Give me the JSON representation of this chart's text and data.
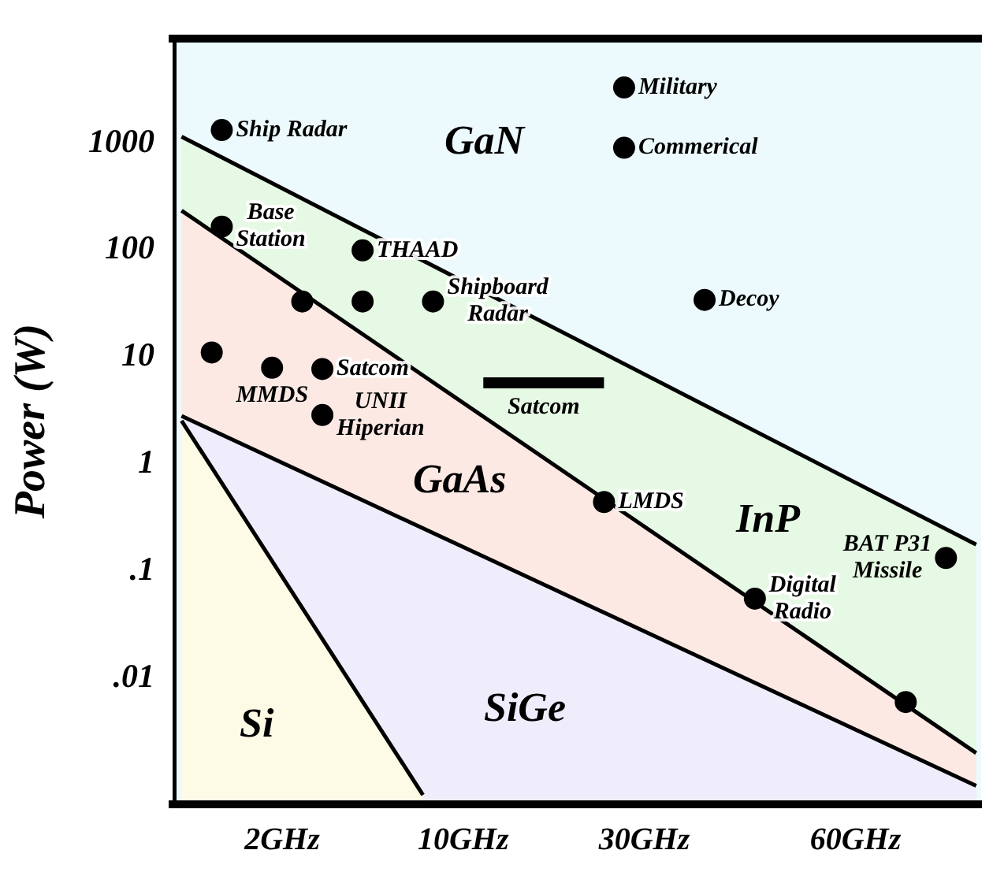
{
  "chart_data": {
    "type": "scatter",
    "ylabel": "Power (W)",
    "log": "y",
    "legend": false,
    "categories": [
      null,
      null,
      null,
      null,
      null,
      null,
      null,
      null,
      null,
      null,
      "2GHz",
      null,
      null,
      null,
      null,
      null,
      null,
      null,
      null,
      null,
      null,
      null,
      null,
      null,
      null,
      null,
      null,
      null,
      "10GHz",
      null,
      null,
      null,
      null,
      null,
      null,
      null,
      null,
      null,
      null,
      null,
      null,
      null,
      null,
      null,
      null,
      null,
      "30GHz",
      null,
      null,
      null,
      null,
      null,
      null,
      null,
      null,
      null,
      null,
      null,
      null,
      null,
      null,
      null,
      null,
      null,
      null,
      null,
      null,
      "60GHz",
      null,
      null,
      null,
      null,
      null,
      null,
      null,
      null,
      null,
      null,
      null,
      null
    ],
    "bands": [
      {
        "axis": "y",
        "from": 0.00065,
        "to": 8000,
        "label": "GaN",
        "color": "#edfafd"
      }
    ],
    "ylim": [
      0.00065,
      8000
    ],
    "yticks": [
      1000,
      100,
      10,
      1,
      {
        "value": 0.1,
        "label": ".1"
      },
      {
        "value": 0.01,
        "label": ".01"
      }
    ],
    "series": [
      {
        "type": "area",
        "name": "InP",
        "color": "#e6f9e4",
        "values": [
          1040,
          null,
          null,
          null,
          null,
          null,
          null,
          null,
          null,
          null,
          null,
          null,
          null,
          null,
          null,
          null,
          null,
          null,
          null,
          null,
          null,
          null,
          null,
          null,
          null,
          null,
          null,
          null,
          null,
          null,
          null,
          null,
          null,
          null,
          null,
          null,
          null,
          null,
          null,
          null,
          null,
          null,
          null,
          null,
          null,
          null,
          null,
          null,
          null,
          null,
          null,
          null,
          null,
          null,
          null,
          null,
          null,
          null,
          null,
          null,
          null,
          null,
          null,
          null,
          null,
          null,
          null,
          null,
          null,
          null,
          null,
          null,
          null,
          null,
          null,
          null,
          null,
          null,
          null,
          0.16
        ]
      },
      {
        "type": "area",
        "name": "GaAs",
        "color": "#fce9e4",
        "values": [
          212,
          null,
          null,
          null,
          null,
          null,
          null,
          null,
          null,
          null,
          null,
          null,
          null,
          null,
          null,
          null,
          null,
          null,
          null,
          null,
          null,
          null,
          null,
          null,
          null,
          null,
          null,
          null,
          null,
          null,
          null,
          null,
          null,
          null,
          null,
          null,
          null,
          null,
          null,
          null,
          null,
          null,
          null,
          null,
          null,
          null,
          null,
          null,
          null,
          null,
          null,
          null,
          null,
          null,
          null,
          null,
          null,
          null,
          null,
          null,
          null,
          null,
          null,
          null,
          null,
          null,
          null,
          null,
          null,
          null,
          null,
          null,
          null,
          null,
          null,
          null,
          null,
          null,
          null,
          0.0018
        ]
      },
      {
        "type": "area",
        "name": "SiGe",
        "color": "#efedfc",
        "values": [
          2.55,
          null,
          null,
          null,
          null,
          null,
          null,
          null,
          null,
          null,
          null,
          null,
          null,
          null,
          null,
          null,
          null,
          null,
          null,
          null,
          null,
          null,
          null,
          null,
          null,
          null,
          null,
          null,
          null,
          null,
          null,
          null,
          null,
          null,
          null,
          null,
          null,
          null,
          null,
          null,
          null,
          null,
          null,
          null,
          null,
          null,
          null,
          null,
          null,
          null,
          null,
          null,
          null,
          null,
          null,
          null,
          null,
          null,
          null,
          null,
          null,
          null,
          null,
          null,
          null,
          null,
          null,
          null,
          null,
          null,
          null,
          null,
          null,
          null,
          null,
          null,
          null,
          null,
          null,
          0.00089
        ]
      },
      {
        "type": "area",
        "name": "Si",
        "color": "#fdfbe6",
        "values": [
          2.3,
          null,
          null,
          null,
          null,
          null,
          null,
          null,
          null,
          null,
          null,
          null,
          null,
          null,
          null,
          null,
          null,
          null,
          null,
          null,
          null,
          null,
          null,
          null,
          0.00073,
          null,
          null,
          null,
          null,
          null,
          null,
          null,
          null,
          null,
          null,
          null,
          null,
          null,
          null,
          null,
          null,
          null,
          null,
          null,
          null,
          null,
          null,
          null,
          null,
          null,
          null,
          null,
          null,
          null,
          null,
          null,
          null,
          null,
          null,
          null,
          null,
          null,
          null,
          null,
          null,
          null,
          null,
          null,
          null,
          null,
          null,
          null,
          null,
          null,
          null,
          null,
          null,
          null,
          null,
          null
        ]
      },
      {
        "type": "line",
        "name": "Satcom",
        "color": "#000000",
        "values": [
          null,
          null,
          null,
          null,
          null,
          null,
          null,
          null,
          null,
          null,
          null,
          null,
          null,
          null,
          null,
          null,
          null,
          null,
          null,
          null,
          null,
          null,
          null,
          null,
          null,
          null,
          null,
          null,
          null,
          null,
          5.2,
          null,
          null,
          null,
          null,
          null,
          null,
          null,
          null,
          null,
          null,
          null,
          5.2,
          null,
          null,
          null,
          null,
          null,
          null,
          null,
          null,
          null,
          null,
          null,
          null,
          null,
          null,
          null,
          null,
          null,
          null,
          null,
          null,
          null,
          null,
          null,
          null,
          null,
          null,
          null,
          null,
          null,
          null,
          null,
          null,
          null,
          null,
          null,
          null,
          null
        ]
      },
      {
        "name": "Ship Radar",
        "color": "#000000",
        "values": [
          null,
          null,
          null,
          null,
          1200,
          null,
          null,
          null,
          null,
          null,
          null,
          null,
          null,
          null,
          null,
          null,
          null,
          null,
          null,
          null,
          null,
          null,
          null,
          null,
          null,
          null,
          null,
          null,
          null,
          null,
          null,
          null,
          null,
          null,
          null,
          null,
          null,
          null,
          null,
          null,
          null,
          null,
          null,
          null,
          null,
          null,
          null,
          null,
          null,
          null,
          null,
          null,
          null,
          null,
          null,
          null,
          null,
          null,
          null,
          null,
          null,
          null,
          null,
          null,
          null,
          null,
          null,
          null,
          null,
          null,
          null,
          null,
          null,
          null,
          null,
          null,
          null,
          null,
          null,
          null
        ]
      },
      {
        "name": "Military",
        "color": "#000000",
        "values": [
          null,
          null,
          null,
          null,
          null,
          null,
          null,
          null,
          null,
          null,
          null,
          null,
          null,
          null,
          null,
          null,
          null,
          null,
          null,
          null,
          null,
          null,
          null,
          null,
          null,
          null,
          null,
          null,
          null,
          null,
          null,
          null,
          null,
          null,
          null,
          null,
          null,
          null,
          null,
          null,
          null,
          null,
          null,
          null,
          3000,
          null,
          null,
          null,
          null,
          null,
          null,
          null,
          null,
          null,
          null,
          null,
          null,
          null,
          null,
          null,
          null,
          null,
          null,
          null,
          null,
          null,
          null,
          null,
          null,
          null,
          null,
          null,
          null,
          null,
          null,
          null,
          null,
          null,
          null,
          null
        ]
      },
      {
        "name": "Commerical",
        "color": "#000000",
        "values": [
          null,
          null,
          null,
          null,
          null,
          null,
          null,
          null,
          null,
          null,
          null,
          null,
          null,
          null,
          null,
          null,
          null,
          null,
          null,
          null,
          null,
          null,
          null,
          null,
          null,
          null,
          null,
          null,
          null,
          null,
          null,
          null,
          null,
          null,
          null,
          null,
          null,
          null,
          null,
          null,
          null,
          null,
          null,
          null,
          820,
          null,
          null,
          null,
          null,
          null,
          null,
          null,
          null,
          null,
          null,
          null,
          null,
          null,
          null,
          null,
          null,
          null,
          null,
          null,
          null,
          null,
          null,
          null,
          null,
          null,
          null,
          null,
          null,
          null,
          null,
          null,
          null,
          null,
          null,
          null
        ]
      },
      {
        "name": "Base\nStation",
        "color": "#000000",
        "values": [
          null,
          null,
          null,
          null,
          150,
          null,
          null,
          null,
          null,
          null,
          null,
          null,
          null,
          null,
          null,
          null,
          null,
          null,
          null,
          null,
          null,
          null,
          null,
          null,
          null,
          null,
          null,
          null,
          null,
          null,
          null,
          null,
          null,
          null,
          null,
          null,
          null,
          null,
          null,
          null,
          null,
          null,
          null,
          null,
          null,
          null,
          null,
          null,
          null,
          null,
          null,
          null,
          null,
          null,
          null,
          null,
          null,
          null,
          null,
          null,
          null,
          null,
          null,
          null,
          null,
          null,
          null,
          null,
          null,
          null,
          null,
          null,
          null,
          null,
          null,
          null,
          null,
          null,
          null,
          null
        ]
      },
      {
        "name": "THAAD",
        "color": "#000000",
        "values": [
          null,
          null,
          null,
          null,
          null,
          null,
          null,
          null,
          null,
          null,
          null,
          null,
          null,
          null,
          null,
          null,
          null,
          null,
          90,
          null,
          null,
          null,
          null,
          null,
          null,
          null,
          null,
          null,
          null,
          null,
          null,
          null,
          null,
          null,
          null,
          null,
          null,
          null,
          null,
          null,
          null,
          null,
          null,
          null,
          null,
          null,
          null,
          null,
          null,
          null,
          null,
          null,
          null,
          null,
          null,
          null,
          null,
          null,
          null,
          null,
          null,
          null,
          null,
          null,
          null,
          null,
          null,
          null,
          null,
          null,
          null,
          null,
          null,
          null,
          null,
          null,
          null,
          null,
          null,
          null
        ]
      },
      {
        "name": "Shipboard\nRadar",
        "color": "#000000",
        "values": [
          null,
          null,
          null,
          null,
          null,
          null,
          null,
          null,
          null,
          null,
          null,
          null,
          null,
          null,
          null,
          null,
          null,
          null,
          null,
          null,
          null,
          null,
          null,
          null,
          null,
          30,
          null,
          null,
          null,
          null,
          null,
          null,
          null,
          null,
          null,
          null,
          null,
          null,
          null,
          null,
          null,
          null,
          null,
          null,
          null,
          null,
          null,
          null,
          null,
          null,
          null,
          null,
          null,
          null,
          null,
          null,
          null,
          null,
          null,
          null,
          null,
          null,
          null,
          null,
          null,
          null,
          null,
          null,
          null,
          null,
          null,
          null,
          null,
          null,
          null,
          null,
          null,
          null,
          null,
          null
        ]
      },
      {
        "name": "Decoy",
        "color": "#000000",
        "values": [
          null,
          null,
          null,
          null,
          null,
          null,
          null,
          null,
          null,
          null,
          null,
          null,
          null,
          null,
          null,
          null,
          null,
          null,
          null,
          null,
          null,
          null,
          null,
          null,
          null,
          null,
          null,
          null,
          null,
          null,
          null,
          null,
          null,
          null,
          null,
          null,
          null,
          null,
          null,
          null,
          null,
          null,
          null,
          null,
          null,
          null,
          null,
          null,
          null,
          null,
          null,
          null,
          31,
          null,
          null,
          null,
          null,
          null,
          null,
          null,
          null,
          null,
          null,
          null,
          null,
          null,
          null,
          null,
          null,
          null,
          null,
          null,
          null,
          null,
          null,
          null,
          null,
          null,
          null,
          null
        ]
      },
      {
        "name": "MMDS",
        "color": "#000000",
        "values": [
          null,
          null,
          null,
          null,
          null,
          null,
          null,
          null,
          null,
          7.2,
          null,
          null,
          null,
          null,
          null,
          null,
          null,
          null,
          null,
          null,
          null,
          null,
          null,
          null,
          null,
          null,
          null,
          null,
          null,
          null,
          null,
          null,
          null,
          null,
          null,
          null,
          null,
          null,
          null,
          null,
          null,
          null,
          null,
          null,
          null,
          null,
          null,
          null,
          null,
          null,
          null,
          null,
          null,
          null,
          null,
          null,
          null,
          null,
          null,
          null,
          null,
          null,
          null,
          null,
          null,
          null,
          null,
          null,
          null,
          null,
          null,
          null,
          null,
          null,
          null,
          null,
          null,
          null,
          null,
          null
        ]
      },
      {
        "name": "Satcom",
        "color": "#000000",
        "values": [
          null,
          null,
          null,
          null,
          null,
          null,
          null,
          null,
          null,
          null,
          null,
          null,
          null,
          null,
          7,
          null,
          null,
          null,
          null,
          null,
          null,
          null,
          null,
          null,
          null,
          null,
          null,
          null,
          null,
          null,
          null,
          null,
          null,
          null,
          null,
          null,
          null,
          null,
          null,
          null,
          null,
          null,
          null,
          null,
          null,
          null,
          null,
          null,
          null,
          null,
          null,
          null,
          null,
          null,
          null,
          null,
          null,
          null,
          null,
          null,
          null,
          null,
          null,
          null,
          null,
          null,
          null,
          null,
          null,
          null,
          null,
          null,
          null,
          null,
          null,
          null,
          null,
          null,
          null,
          null
        ]
      },
      {
        "name": "UNII\nHiperian",
        "color": "#000000",
        "values": [
          null,
          null,
          null,
          null,
          null,
          null,
          null,
          null,
          null,
          null,
          null,
          null,
          null,
          null,
          2.6,
          null,
          null,
          null,
          null,
          null,
          null,
          null,
          null,
          null,
          null,
          null,
          null,
          null,
          null,
          null,
          null,
          null,
          null,
          null,
          null,
          null,
          null,
          null,
          null,
          null,
          null,
          null,
          null,
          null,
          null,
          null,
          null,
          null,
          null,
          null,
          null,
          null,
          null,
          null,
          null,
          null,
          null,
          null,
          null,
          null,
          null,
          null,
          null,
          null,
          null,
          null,
          null,
          null,
          null,
          null,
          null,
          null,
          null,
          null,
          null,
          null,
          null,
          null,
          null,
          null
        ]
      },
      {
        "name": "LMDS",
        "color": "#000000",
        "values": [
          null,
          null,
          null,
          null,
          null,
          null,
          null,
          null,
          null,
          null,
          null,
          null,
          null,
          null,
          null,
          null,
          null,
          null,
          null,
          null,
          null,
          null,
          null,
          null,
          null,
          null,
          null,
          null,
          null,
          null,
          null,
          null,
          null,
          null,
          null,
          null,
          null,
          null,
          null,
          null,
          null,
          null,
          0.4,
          null,
          null,
          null,
          null,
          null,
          null,
          null,
          null,
          null,
          null,
          null,
          null,
          null,
          null,
          null,
          null,
          null,
          null,
          null,
          null,
          null,
          null,
          null,
          null,
          null,
          null,
          null,
          null,
          null,
          null,
          null,
          null,
          null,
          null,
          null,
          null,
          null
        ]
      },
      {
        "name": "Digital\nRadio",
        "color": "#000000",
        "values": [
          null,
          null,
          null,
          null,
          null,
          null,
          null,
          null,
          null,
          null,
          null,
          null,
          null,
          null,
          null,
          null,
          null,
          null,
          null,
          null,
          null,
          null,
          null,
          null,
          null,
          null,
          null,
          null,
          null,
          null,
          null,
          null,
          null,
          null,
          null,
          null,
          null,
          null,
          null,
          null,
          null,
          null,
          null,
          null,
          null,
          null,
          null,
          null,
          null,
          null,
          null,
          null,
          null,
          null,
          null,
          null,
          null,
          0.05,
          null,
          null,
          null,
          null,
          null,
          null,
          null,
          null,
          null,
          null,
          null,
          null,
          null,
          null,
          null,
          null,
          null,
          null,
          null,
          null,
          null,
          null
        ]
      },
      {
        "name": "BAT P31\nMissile",
        "color": "#000000",
        "values": [
          null,
          null,
          null,
          null,
          null,
          null,
          null,
          null,
          null,
          null,
          null,
          null,
          null,
          null,
          null,
          null,
          null,
          null,
          null,
          null,
          null,
          null,
          null,
          null,
          null,
          null,
          null,
          null,
          null,
          null,
          null,
          null,
          null,
          null,
          null,
          null,
          null,
          null,
          null,
          null,
          null,
          null,
          null,
          null,
          null,
          null,
          null,
          null,
          null,
          null,
          null,
          null,
          null,
          null,
          null,
          null,
          null,
          null,
          null,
          null,
          null,
          null,
          null,
          null,
          null,
          null,
          null,
          null,
          null,
          null,
          null,
          null,
          null,
          null,
          null,
          null,
          0.12,
          null,
          null,
          null
        ]
      },
      {
        "color": "#000000",
        "values": [
          null,
          null,
          null,
          10,
          null,
          null,
          null,
          null,
          null,
          null,
          null,
          null,
          30,
          null,
          null,
          null,
          null,
          null,
          30,
          null,
          null,
          null,
          null,
          null,
          null,
          null,
          null,
          null,
          null,
          null,
          null,
          null,
          null,
          null,
          null,
          null,
          null,
          null,
          null,
          null,
          null,
          null,
          null,
          null,
          null,
          null,
          null,
          null,
          null,
          null,
          null,
          null,
          null,
          null,
          null,
          null,
          null,
          null,
          null,
          null,
          null,
          null,
          null,
          null,
          null,
          null,
          null,
          null,
          null,
          null,
          null,
          null,
          0.0054,
          null,
          null,
          null,
          null,
          null,
          null,
          null
        ]
      }
    ]
  }
}
